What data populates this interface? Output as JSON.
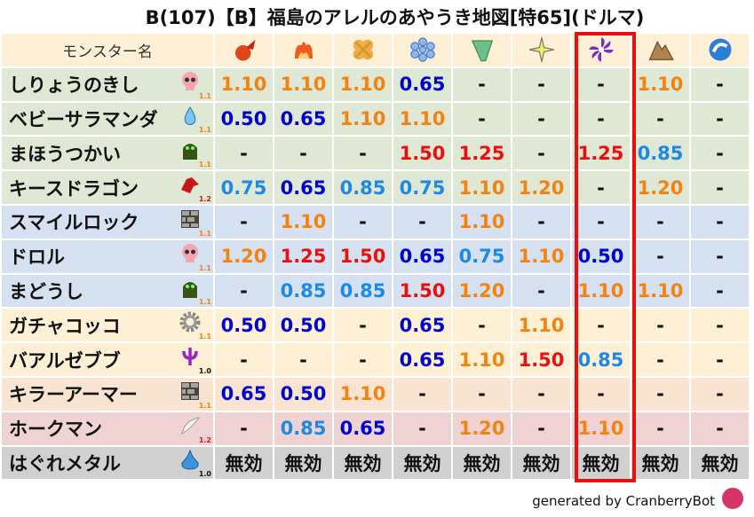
{
  "title": "B(107)【B】福島のアレルのあやうき地図[特65](ドルマ)",
  "header": {
    "name_label": "モンスター名",
    "elements": [
      "fire-icon",
      "flame-icon",
      "explosion-icon",
      "ice-icon",
      "wind-icon",
      "light-icon",
      "dark-icon",
      "earth-icon",
      "water-icon"
    ],
    "highlighted_column": 6
  },
  "colors": {
    "high_red": "#e8100f",
    "high_orange": "#f5820f",
    "low_blue": "#0000cc",
    "mid_blue": "#1e88e5",
    "highlight": "#e8100f"
  },
  "rows": [
    {
      "name": "しりょうのきし",
      "icon": "skull-icon",
      "mult": "1.1",
      "bg": "#dfe8d5",
      "values": [
        "1.10",
        "1.10",
        "1.10",
        "0.65",
        "-",
        "-",
        "-",
        "1.10",
        "-"
      ]
    },
    {
      "name": "ベビーサラマンダ",
      "icon": "water-drop-icon",
      "mult": "1.1",
      "bg": "#dfe8d5",
      "values": [
        "0.50",
        "0.65",
        "1.10",
        "1.10",
        "-",
        "-",
        "-",
        "-",
        "-"
      ]
    },
    {
      "name": "まほうつかい",
      "icon": "ghost-icon",
      "mult": "1.1",
      "bg": "#dfe8d5",
      "values": [
        "-",
        "-",
        "-",
        "1.50",
        "1.25",
        "-",
        "1.25",
        "0.85",
        "-"
      ]
    },
    {
      "name": "キースドラゴン",
      "icon": "dragon-icon",
      "mult": "1.2",
      "bg": "#dfe8d5",
      "values": [
        "0.75",
        "0.65",
        "0.85",
        "0.75",
        "1.10",
        "1.20",
        "-",
        "1.20",
        "-"
      ]
    },
    {
      "name": "スマイルロック",
      "icon": "brick-icon",
      "mult": "1.1",
      "bg": "#d5e1f0",
      "values": [
        "-",
        "1.10",
        "-",
        "-",
        "1.10",
        "-",
        "-",
        "-",
        "-"
      ]
    },
    {
      "name": "ドロル",
      "icon": "skull-icon",
      "mult": "1.1",
      "bg": "#d5e1f0",
      "values": [
        "1.20",
        "1.25",
        "1.50",
        "0.65",
        "0.75",
        "1.10",
        "0.50",
        "-",
        "-"
      ]
    },
    {
      "name": "まどうし",
      "icon": "ghost-icon",
      "mult": "1.1",
      "bg": "#d5e1f0",
      "values": [
        "-",
        "0.85",
        "0.85",
        "1.50",
        "1.20",
        "-",
        "1.10",
        "1.10",
        "-"
      ]
    },
    {
      "name": "ガチャコッコ",
      "icon": "gear-icon",
      "mult": "1.1",
      "bg": "#fdf0d4",
      "values": [
        "0.50",
        "0.50",
        "-",
        "0.65",
        "-",
        "1.10",
        "-",
        "-",
        "-"
      ]
    },
    {
      "name": "バアルゼブブ",
      "icon": "trident-icon",
      "mult": "1.0",
      "bg": "#fdf0d4",
      "values": [
        "-",
        "-",
        "-",
        "0.65",
        "1.10",
        "1.50",
        "0.85",
        "-",
        "-"
      ]
    },
    {
      "name": "キラーアーマー",
      "icon": "brick-icon",
      "mult": "1.1",
      "bg": "#f9e4d2",
      "values": [
        "0.65",
        "0.50",
        "1.10",
        "-",
        "-",
        "-",
        "-",
        "-",
        "-"
      ]
    },
    {
      "name": "ホークマン",
      "icon": "wing-icon",
      "mult": "1.2",
      "bg": "#efd3d3",
      "values": [
        "-",
        "0.85",
        "0.65",
        "-",
        "1.20",
        "-",
        "1.10",
        "-",
        "-"
      ]
    },
    {
      "name": "はぐれメタル",
      "icon": "slime-icon",
      "mult": "1.0",
      "bg": "#d0d0d0",
      "values": [
        "無効",
        "無効",
        "無効",
        "無効",
        "無効",
        "無効",
        "無効",
        "無効",
        "無効"
      ]
    }
  ],
  "footer": "generated by CranberryBot"
}
